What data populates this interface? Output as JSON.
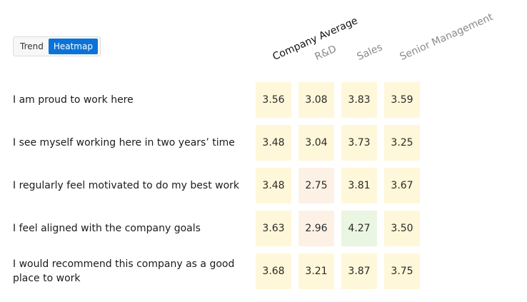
{
  "toggle": {
    "options": [
      "Trend",
      "Heatmap"
    ],
    "active": "Heatmap"
  },
  "columns": [
    "Company Average",
    "R&D",
    "Sales",
    "Senior Management"
  ],
  "rows": [
    {
      "label": "I am proud to work here",
      "values": [
        "3.56",
        "3.08",
        "3.83",
        "3.59"
      ]
    },
    {
      "label": "I see myself working here in two years’ time",
      "values": [
        "3.48",
        "3.04",
        "3.73",
        "3.25"
      ]
    },
    {
      "label": "I regularly feel motivated to do my best work",
      "values": [
        "3.48",
        "2.75",
        "3.81",
        "3.67"
      ]
    },
    {
      "label": "I feel aligned with the company goals",
      "values": [
        "3.63",
        "2.96",
        "4.27",
        "3.50"
      ]
    },
    {
      "label": "I would recommend this company as a good place to work",
      "values": [
        "3.68",
        "3.21",
        "3.87",
        "3.75"
      ]
    }
  ],
  "colors": {
    "neutral": "#fff7d9",
    "low": "#fdf1e6",
    "high": "#eaf5e2",
    "toggle_active": "#0b73d6"
  }
}
